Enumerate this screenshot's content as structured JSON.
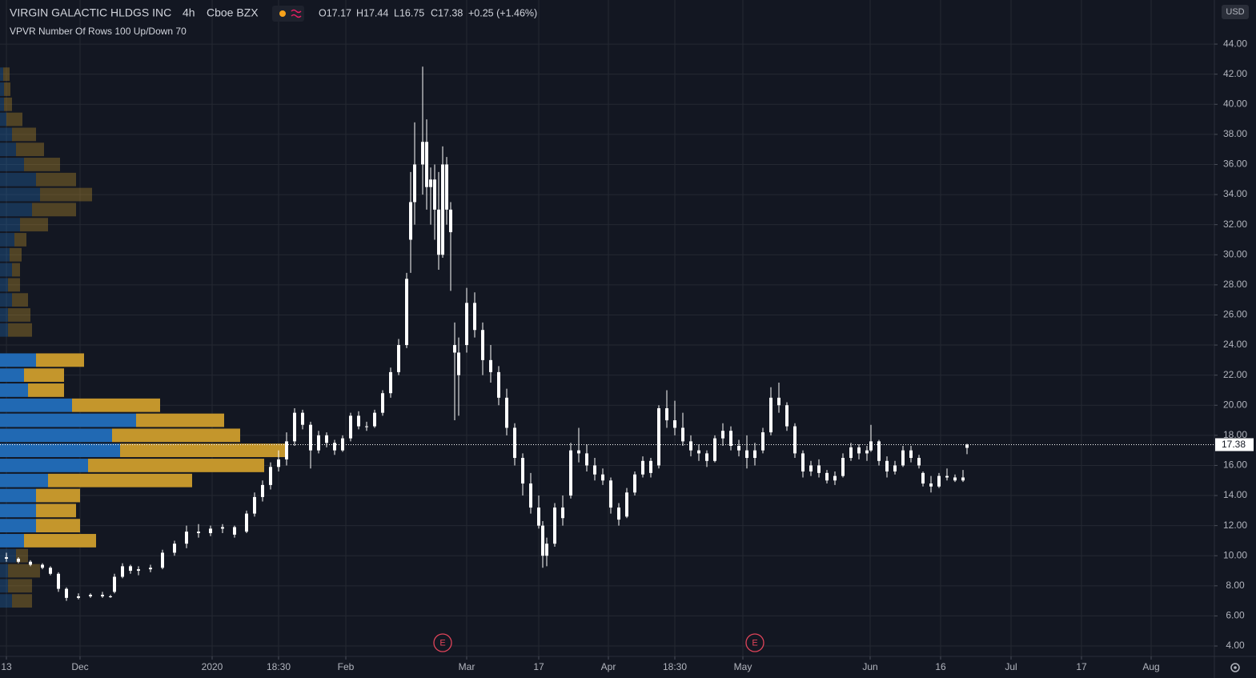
{
  "header": {
    "symbol": "VIRGIN GALACTIC HLDGS INC",
    "interval": "4h",
    "exchange": "Cboe BZX",
    "open": "O17.17",
    "high": "H17.44",
    "low": "L16.75",
    "close": "C17.38",
    "change": "+0.25 (+1.46%)",
    "indicator": "VPVR Number Of Rows 100 Up/Down 70",
    "currency": "USD"
  },
  "chart_data": {
    "type": "candlestick",
    "candle_color": "#ffffff",
    "grid": true,
    "x": [
      0,
      3,
      6,
      9,
      11,
      13,
      15,
      18,
      21,
      24,
      26,
      27,
      29,
      31,
      33,
      36,
      39,
      42,
      45,
      48,
      51,
      54,
      57,
      60,
      62,
      64,
      66,
      68,
      70,
      72,
      74,
      76,
      78,
      80,
      82,
      84,
      86,
      88,
      90,
      92,
      94,
      96,
      98,
      100,
      101,
      102,
      104,
      105,
      106,
      107,
      108,
      109,
      110,
      111,
      112,
      113,
      115,
      117,
      119,
      121,
      123,
      125,
      127,
      129,
      131,
      133,
      134,
      135,
      137,
      139,
      141,
      143,
      145,
      147,
      149,
      151,
      153,
      155,
      157,
      159,
      161,
      163,
      165,
      167,
      169,
      171,
      173,
      175,
      177,
      179,
      181,
      183,
      185,
      187,
      189,
      191,
      193,
      195,
      197,
      199,
      201,
      203,
      205,
      207,
      209,
      211,
      213,
      215,
      216,
      218,
      220,
      222,
      224,
      226,
      228,
      229,
      231,
      233,
      235,
      237,
      239,
      240
    ],
    "open": [
      9.9,
      9.8,
      9.6,
      9.4,
      9.2,
      8.8,
      7.8,
      7.2,
      7.3,
      7.4,
      7.3,
      7.6,
      8.6,
      9.3,
      9.0,
      9.1,
      9.2,
      10.2,
      10.8,
      11.6,
      11.5,
      11.8,
      11.9,
      11.6,
      12.8,
      13.9,
      14.7,
      15.9,
      16.4,
      17.6,
      19.5,
      18.7,
      17.0,
      18.0,
      17.5,
      17.0,
      17.8,
      19.3,
      18.6,
      18.6,
      19.5,
      20.8,
      22.2,
      24.0,
      31.0,
      33.5,
      36.0,
      37.5,
      34.5,
      35.0,
      33.0,
      30.0,
      36.0,
      33.0,
      24.0,
      23.5,
      24.0,
      26.8,
      25.0,
      23.0,
      22.2,
      20.5,
      18.5,
      16.5,
      14.8,
      13.2,
      12.0,
      10.0,
      10.8,
      13.2,
      14.0,
      17.0,
      16.8,
      16.0,
      15.4,
      15.0,
      13.2,
      12.6,
      14.2,
      15.4,
      16.3,
      16.0,
      19.8,
      19.0,
      18.5,
      17.6,
      17.0,
      16.8,
      16.3,
      17.8,
      18.3,
      17.3,
      17.0,
      16.5,
      17.0,
      18.2,
      20.5,
      20.0,
      18.6,
      16.8,
      15.6,
      16.0,
      15.5,
      15.0,
      15.3,
      16.5,
      17.2,
      16.8,
      17.0,
      17.6,
      16.3,
      15.6,
      16.0,
      17.0,
      16.5,
      15.5,
      14.8,
      14.6,
      15.3,
      15.2,
      15.0,
      17.17
    ],
    "high": [
      10.2,
      9.9,
      9.7,
      9.5,
      9.3,
      8.9,
      7.9,
      7.5,
      7.5,
      7.6,
      7.4,
      8.8,
      9.5,
      9.4,
      9.3,
      9.4,
      10.4,
      11.0,
      12.0,
      12.1,
      12.0,
      12.1,
      12.0,
      13.0,
      14.2,
      15.0,
      16.2,
      17.0,
      18.2,
      19.8,
      19.7,
      18.9,
      18.3,
      18.2,
      17.7,
      18.0,
      19.5,
      19.6,
      18.9,
      19.7,
      21.0,
      22.5,
      24.4,
      28.8,
      35.5,
      38.8,
      42.5,
      39.0,
      35.8,
      36.0,
      35.5,
      37.2,
      36.5,
      33.5,
      25.5,
      24.5,
      27.8,
      27.5,
      25.5,
      24.0,
      22.6,
      21.1,
      18.8,
      16.8,
      15.5,
      14.0,
      12.3,
      11.2,
      13.5,
      14.0,
      17.5,
      18.5,
      17.4,
      16.5,
      15.8,
      15.2,
      13.5,
      14.5,
      15.6,
      16.6,
      16.5,
      20.0,
      21.0,
      20.3,
      19.5,
      18.0,
      17.4,
      17.0,
      18.0,
      18.8,
      18.6,
      17.7,
      18.0,
      17.5,
      18.5,
      21.2,
      21.5,
      20.2,
      18.8,
      17.0,
      16.3,
      16.4,
      15.7,
      15.6,
      16.8,
      17.5,
      17.4,
      17.3,
      18.7,
      17.7,
      16.6,
      16.3,
      17.3,
      17.3,
      16.7,
      15.6,
      15.3,
      15.5,
      15.8,
      15.4,
      15.7,
      17.44
    ],
    "low": [
      9.6,
      9.5,
      9.3,
      9.1,
      8.7,
      7.6,
      7.0,
      7.1,
      7.2,
      7.2,
      7.2,
      7.5,
      8.5,
      8.8,
      8.7,
      8.9,
      9.1,
      10.0,
      10.5,
      11.2,
      11.3,
      11.5,
      11.2,
      11.5,
      12.6,
      13.6,
      14.4,
      15.6,
      16.0,
      17.3,
      18.4,
      15.8,
      16.8,
      17.2,
      16.7,
      16.9,
      17.6,
      18.4,
      18.3,
      18.5,
      19.3,
      20.5,
      22.0,
      23.8,
      28.8,
      32.0,
      34.0,
      33.0,
      32.0,
      31.0,
      29.0,
      29.8,
      32.0,
      27.6,
      19.0,
      19.3,
      23.5,
      24.5,
      22.0,
      21.5,
      20.0,
      18.0,
      16.0,
      14.0,
      12.8,
      11.8,
      9.2,
      9.3,
      10.6,
      12.0,
      13.8,
      16.2,
      15.6,
      15.0,
      14.7,
      12.8,
      12.0,
      12.5,
      14.0,
      15.2,
      15.2,
      15.8,
      18.5,
      18.0,
      17.3,
      16.6,
      16.3,
      15.9,
      16.2,
      17.3,
      17.0,
      16.6,
      15.8,
      16.0,
      16.8,
      18.0,
      19.5,
      18.3,
      16.5,
      15.2,
      15.3,
      15.2,
      14.8,
      14.7,
      15.2,
      16.3,
      16.4,
      16.3,
      16.9,
      16.0,
      15.2,
      15.4,
      15.9,
      16.2,
      15.8,
      14.6,
      14.2,
      14.5,
      15.0,
      14.9,
      14.9,
      16.75
    ],
    "close": [
      9.8,
      9.6,
      9.4,
      9.2,
      8.8,
      7.8,
      7.2,
      7.3,
      7.4,
      7.3,
      7.3,
      8.6,
      9.3,
      9.0,
      9.1,
      9.2,
      10.2,
      10.8,
      11.6,
      11.5,
      11.8,
      11.9,
      11.4,
      12.8,
      13.9,
      14.7,
      15.9,
      16.4,
      17.6,
      19.5,
      18.7,
      17.0,
      18.0,
      17.5,
      17.0,
      17.8,
      19.3,
      18.6,
      18.6,
      19.5,
      20.8,
      22.2,
      24.0,
      28.4,
      33.5,
      36.0,
      37.5,
      34.5,
      35.0,
      33.0,
      30.0,
      36.0,
      33.0,
      31.5,
      23.5,
      22.0,
      26.8,
      25.0,
      23.0,
      22.2,
      20.5,
      18.5,
      16.5,
      14.8,
      13.2,
      12.0,
      10.0,
      10.8,
      13.2,
      12.5,
      17.0,
      16.8,
      16.0,
      15.4,
      15.0,
      13.2,
      12.4,
      14.2,
      15.4,
      16.3,
      15.5,
      19.8,
      19.0,
      18.5,
      17.6,
      17.0,
      16.8,
      16.3,
      17.8,
      18.3,
      17.3,
      17.0,
      16.5,
      17.0,
      18.2,
      20.5,
      20.0,
      18.6,
      16.8,
      15.6,
      16.0,
      15.5,
      15.0,
      15.3,
      16.5,
      17.2,
      16.8,
      17.0,
      17.6,
      16.3,
      15.6,
      16.0,
      17.0,
      16.5,
      16.0,
      14.8,
      14.6,
      15.3,
      15.2,
      15.0,
      15.2,
      17.38
    ],
    "xlim": [
      -1.6,
      301.8
    ],
    "xticks": [
      {
        "value": 0,
        "label": "13"
      },
      {
        "value": 18.4,
        "label": "Dec"
      },
      {
        "value": 51.4,
        "label": "2020"
      },
      {
        "value": 68,
        "label": "18:30"
      },
      {
        "value": 84.8,
        "label": "Feb"
      },
      {
        "value": 115,
        "label": "Mar"
      },
      {
        "value": 133,
        "label": "17"
      },
      {
        "value": 150.4,
        "label": "Apr"
      },
      {
        "value": 167,
        "label": "18:30"
      },
      {
        "value": 184,
        "label": "May"
      },
      {
        "value": 215.8,
        "label": "Jun"
      },
      {
        "value": 233.4,
        "label": "16"
      },
      {
        "value": 251,
        "label": "Jul"
      },
      {
        "value": 268.6,
        "label": "17"
      },
      {
        "value": 286,
        "label": "Aug"
      }
    ],
    "ylim": [
      3.31,
      46.93
    ],
    "yticks": [
      {
        "value": 4,
        "label": "4.00"
      },
      {
        "value": 6,
        "label": "6.00"
      },
      {
        "value": 8,
        "label": "8.00"
      },
      {
        "value": 10,
        "label": "10.00"
      },
      {
        "value": 12,
        "label": "12.00"
      },
      {
        "value": 14,
        "label": "14.00"
      },
      {
        "value": 16,
        "label": "16.00"
      },
      {
        "value": 18,
        "label": "18.00"
      },
      {
        "value": 20,
        "label": "20.00"
      },
      {
        "value": 22,
        "label": "22.00"
      },
      {
        "value": 24,
        "label": "24.00"
      },
      {
        "value": 26,
        "label": "26.00"
      },
      {
        "value": 28,
        "label": "28.00"
      },
      {
        "value": 30,
        "label": "30.00"
      },
      {
        "value": 32,
        "label": "32.00"
      },
      {
        "value": 34,
        "label": "34.00"
      },
      {
        "value": 36,
        "label": "36.00"
      },
      {
        "value": 38,
        "label": "38.00"
      },
      {
        "value": 40,
        "label": "40.00"
      },
      {
        "value": 42,
        "label": "42.00"
      },
      {
        "value": 44,
        "label": "44.00"
      }
    ],
    "last_price": {
      "value": 17.38,
      "label": "17.38"
    },
    "events": [
      {
        "x": 109,
        "label": "E"
      },
      {
        "x": 187,
        "label": "E"
      }
    ],
    "volume_profile": {
      "row_size": 1,
      "price": [
        7,
        8,
        9,
        10,
        11,
        12,
        13,
        14,
        15,
        16,
        17,
        18,
        19,
        20,
        21,
        22,
        23,
        25,
        26,
        27,
        28,
        29,
        30,
        31,
        32,
        33,
        34,
        35,
        36,
        37,
        38,
        39,
        40,
        41,
        42
      ],
      "up": [
        15,
        10,
        10,
        20,
        30,
        45,
        45,
        45,
        60,
        110,
        150,
        140,
        170,
        90,
        35,
        30,
        45,
        10,
        10,
        15,
        10,
        15,
        12,
        18,
        25,
        40,
        50,
        45,
        30,
        20,
        15,
        8,
        5,
        5,
        4
      ],
      "down": [
        25,
        30,
        40,
        15,
        90,
        55,
        50,
        55,
        180,
        220,
        210,
        160,
        110,
        110,
        45,
        50,
        60,
        30,
        28,
        20,
        15,
        10,
        15,
        15,
        35,
        55,
        65,
        50,
        45,
        35,
        30,
        20,
        10,
        8,
        8
      ],
      "up_color": "#2169b3",
      "down_color": "#c4962c",
      "value_area": [
        10.5,
        24
      ]
    }
  }
}
